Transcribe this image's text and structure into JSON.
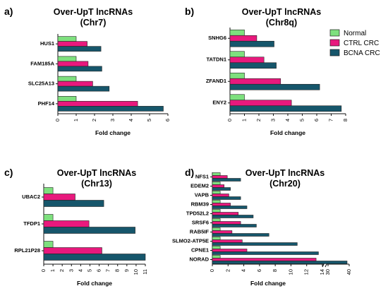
{
  "legend": {
    "items": [
      {
        "label": "Normal",
        "color": "#7ee07e"
      },
      {
        "label": "CTRL CRC",
        "color": "#e8197d"
      },
      {
        "label": "BCNA CRC",
        "color": "#16566b"
      }
    ]
  },
  "chart_data": [
    {
      "type": "bar",
      "orientation": "horizontal",
      "panel_letter": "a)",
      "title_line1": "Over-UpT lncRNAs",
      "title_line2": "(Chr7)",
      "xlabel": "Fold change",
      "xlim": [
        0,
        6
      ],
      "xticks": [
        "0",
        "1",
        "2",
        "3",
        "4",
        "5",
        "6"
      ],
      "categories": [
        "HUS1",
        "FAM185A",
        "SLC25A13",
        "PHF14"
      ],
      "series": [
        {
          "name": "Normal",
          "values": [
            1,
            1,
            1,
            1
          ]
        },
        {
          "name": "CTRL CRC",
          "values": [
            1.6,
            1.65,
            1.9,
            4.35
          ]
        },
        {
          "name": "BCNA CRC",
          "values": [
            2.35,
            2.4,
            2.8,
            5.75
          ]
        }
      ]
    },
    {
      "type": "bar",
      "orientation": "horizontal",
      "panel_letter": "b)",
      "title_line1": "Over-UpT lncRNAs",
      "title_line2": "(Chr8q)",
      "xlabel": "Fold change",
      "xlim": [
        0,
        8
      ],
      "xticks": [
        "0",
        "1",
        "2",
        "3",
        "4",
        "5",
        "6",
        "7",
        "8"
      ],
      "categories": [
        "SNHG6",
        "TATDN1",
        "ZFAND1",
        "ENY2"
      ],
      "series": [
        {
          "name": "Normal",
          "values": [
            1,
            1,
            1,
            1
          ]
        },
        {
          "name": "CTRL CRC",
          "values": [
            1.85,
            2.35,
            3.5,
            4.25
          ]
        },
        {
          "name": "BCNA CRC",
          "values": [
            3.05,
            3.2,
            6.2,
            7.7
          ]
        }
      ]
    },
    {
      "type": "bar",
      "orientation": "horizontal",
      "panel_letter": "c)",
      "title_line1": "Over-UpT lncRNAs",
      "title_line2": "(Chr13)",
      "xlabel": "Fold change",
      "xlim": [
        0,
        11
      ],
      "xticks": [
        "0",
        "1",
        "2",
        "3",
        "4",
        "5",
        "6",
        "7",
        "8",
        "9",
        "10",
        "11"
      ],
      "categories": [
        "UBAC2",
        "TFDP1",
        "RPL21P28"
      ],
      "series": [
        {
          "name": "Normal",
          "values": [
            1,
            1,
            1
          ]
        },
        {
          "name": "CTRL CRC",
          "values": [
            3.4,
            4.9,
            6.3
          ]
        },
        {
          "name": "BCNA CRC",
          "values": [
            6.5,
            9.9,
            11
          ]
        }
      ]
    },
    {
      "type": "bar",
      "orientation": "horizontal",
      "panel_letter": "d)",
      "title_line1": "Over-UpT lncRNAs",
      "title_line2": "(Chr20)",
      "xlabel": "Fold change",
      "xlim": [
        0,
        40
      ],
      "axis_break": [
        14,
        30
      ],
      "xticks": [
        "0",
        "2",
        "4",
        "6",
        "8",
        "10",
        "12",
        "14",
        "30",
        "40"
      ],
      "categories": [
        "NFS1",
        "EDEM2",
        "VAPB",
        "RBM39",
        "TPD52L2",
        "SRSF6",
        "RAB5IF",
        "SLMO2-ATP5E",
        "CPNE1",
        "NORAD"
      ],
      "series": [
        {
          "name": "Normal",
          "values": [
            1,
            1,
            1,
            1,
            1,
            1,
            1,
            1,
            1,
            1
          ]
        },
        {
          "name": "CTRL CRC",
          "values": [
            1.9,
            1.5,
            2.1,
            2.3,
            3.3,
            3.6,
            2.5,
            3.8,
            4.4,
            13.2
          ]
        },
        {
          "name": "BCNA CRC",
          "values": [
            3.6,
            2.3,
            3.6,
            4.4,
            5.2,
            5.6,
            7.2,
            10.8,
            13.5,
            39
          ]
        }
      ]
    }
  ]
}
